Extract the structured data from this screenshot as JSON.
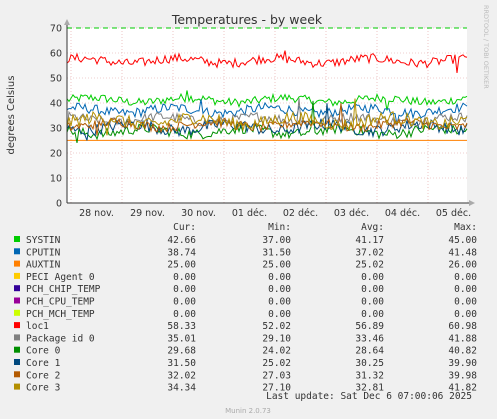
{
  "chart_data": {
    "type": "line",
    "title": "Temperatures - by week",
    "ylabel": "degrees Celsius",
    "side_label": "RRDTOOL / TOBI OETIKER",
    "ylim": [
      0,
      70
    ],
    "yticks": [
      0,
      10,
      20,
      30,
      40,
      50,
      60,
      70
    ],
    "xtick_labels": [
      "28 nov.",
      "29 nov.",
      "30 nov.",
      "01 déc.",
      "02 déc.",
      "03 déc.",
      "04 déc.",
      "05 déc."
    ],
    "warning_line": 70,
    "grid": true,
    "legend_headers": {
      "cur": "Cur:",
      "min": "Min:",
      "avg": "Avg:",
      "max": "Max:"
    },
    "series": [
      {
        "name": "SYSTIN",
        "color": "#00cc00",
        "cur": "42.66",
        "min": "37.00",
        "avg": "41.17",
        "max": "45.00"
      },
      {
        "name": "CPUTIN",
        "color": "#0066b3",
        "cur": "38.74",
        "min": "31.50",
        "avg": "37.02",
        "max": "41.48"
      },
      {
        "name": "AUXTIN",
        "color": "#ff8000",
        "cur": "25.00",
        "min": "25.00",
        "avg": "25.02",
        "max": "26.00"
      },
      {
        "name": "PECI Agent 0",
        "color": "#ffcc00",
        "cur": "0.00",
        "min": "0.00",
        "avg": "0.00",
        "max": "0.00"
      },
      {
        "name": "PCH_CHIP_TEMP",
        "color": "#330099",
        "cur": "0.00",
        "min": "0.00",
        "avg": "0.00",
        "max": "0.00"
      },
      {
        "name": "PCH_CPU_TEMP",
        "color": "#990099",
        "cur": "0.00",
        "min": "0.00",
        "avg": "0.00",
        "max": "0.00"
      },
      {
        "name": "PCH_MCH_TEMP",
        "color": "#ccff00",
        "cur": "0.00",
        "min": "0.00",
        "avg": "0.00",
        "max": "0.00"
      },
      {
        "name": "loc1",
        "color": "#ff0000",
        "cur": "58.33",
        "min": "52.02",
        "avg": "56.89",
        "max": "60.98"
      },
      {
        "name": "Package id 0",
        "color": "#808080",
        "cur": "35.01",
        "min": "29.10",
        "avg": "33.46",
        "max": "41.88"
      },
      {
        "name": "Core 0",
        "color": "#008f00",
        "cur": "29.68",
        "min": "24.02",
        "avg": "28.64",
        "max": "40.82"
      },
      {
        "name": "Core 1",
        "color": "#00487d",
        "cur": "31.50",
        "min": "25.02",
        "avg": "30.25",
        "max": "39.90"
      },
      {
        "name": "Core 2",
        "color": "#b35a00",
        "cur": "32.02",
        "min": "27.03",
        "avg": "31.32",
        "max": "39.98"
      },
      {
        "name": "Core 3",
        "color": "#b38f00",
        "cur": "34.34",
        "min": "27.10",
        "avg": "32.81",
        "max": "41.82"
      }
    ],
    "last_update": "Last update: Sat Dec  6 07:00:06 2025",
    "footer": "Munin 2.0.73"
  }
}
